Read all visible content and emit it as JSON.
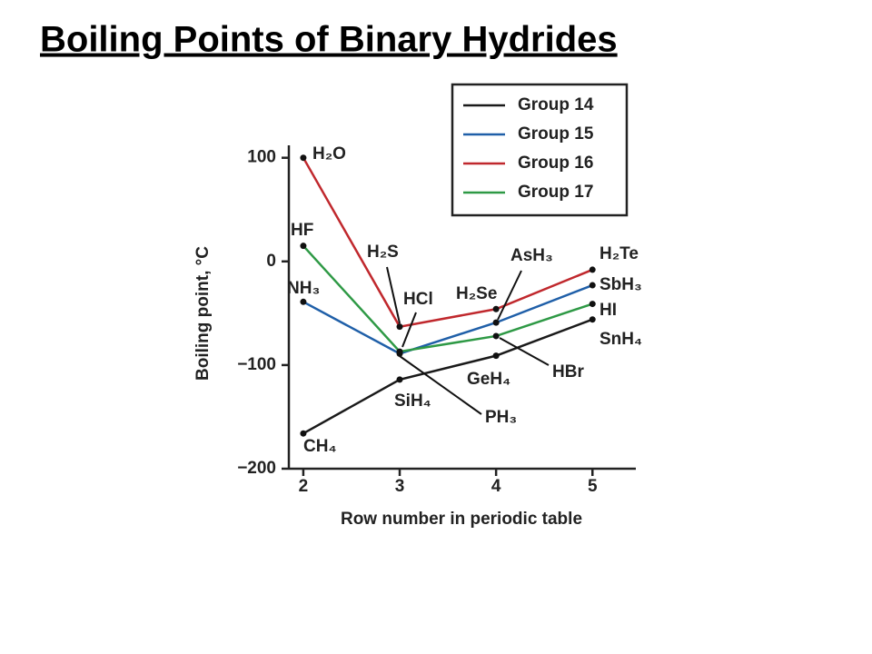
{
  "chart_data": {
    "type": "line",
    "title": "Boiling Points of Binary Hydrides",
    "x_label": "Row number in periodic table",
    "y_label": "Boiling point, °C",
    "x": [
      2,
      3,
      4,
      5
    ],
    "series": [
      {
        "name": "Group 14",
        "color": "#1a1a1a",
        "values": [
          -166,
          -114,
          -91,
          -56
        ]
      },
      {
        "name": "Group 15",
        "color": "#1f5fa8",
        "values": [
          -39,
          -89,
          -59,
          -23
        ]
      },
      {
        "name": "Group 16",
        "color": "#c0282d",
        "values": [
          100,
          -63,
          -46,
          -8
        ]
      },
      {
        "name": "Group 17",
        "color": "#2e9945",
        "values": [
          15,
          -87,
          -72,
          -41
        ]
      }
    ],
    "xlim": [
      1.85,
      5.45
    ],
    "ylim": [
      -200,
      112
    ],
    "xticks": [
      2,
      3,
      4,
      5
    ],
    "yticks": [
      100,
      0,
      {
        "value": -100,
        "label": "−100"
      },
      {
        "value": -200,
        "label": "−200"
      }
    ],
    "legend": "upper right",
    "annotations": [
      "H₂O",
      "HF",
      "NH₃",
      "H₂S",
      "HCl",
      "H₂Se",
      "AsH₃",
      "H₂Te",
      "SbH₃",
      "HI",
      "SnH₄",
      "HBr",
      "GeH₄",
      "SiH₄",
      "PH₃",
      "CH₄"
    ]
  }
}
